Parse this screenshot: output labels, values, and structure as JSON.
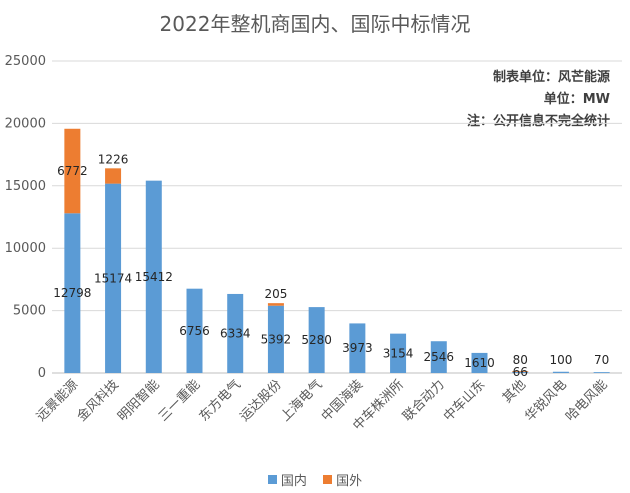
{
  "chart_data": {
    "type": "bar",
    "stacked": true,
    "title": "2022年整机商国内、国际中标情况",
    "notes": [
      "制表单位：风芒能源",
      "单位：MW",
      "注：公开信息不完全统计"
    ],
    "categories": [
      "远景能源",
      "金风科技",
      "明阳智能",
      "三一重能",
      "东方电气",
      "运达股份",
      "上海电气",
      "中国海装",
      "中车株洲所",
      "联合动力",
      "中车山东",
      "其他",
      "华锐风电",
      "哈电风能"
    ],
    "series": [
      {
        "name": "国内",
        "color": "#5B9BD5",
        "values": [
          12798,
          15174,
          15412,
          6756,
          6334,
          5392,
          5280,
          3973,
          3154,
          2546,
          1610,
          80,
          100,
          70
        ]
      },
      {
        "name": "国外",
        "color": "#ED7D31",
        "values": [
          6772,
          1226,
          null,
          null,
          null,
          205,
          null,
          null,
          null,
          null,
          null,
          66,
          null,
          null
        ]
      }
    ],
    "ylim": [
      0,
      25000
    ],
    "yticks": [
      0,
      5000,
      10000,
      15000,
      20000,
      25000
    ],
    "grid": true,
    "legend_position": "bottom"
  }
}
